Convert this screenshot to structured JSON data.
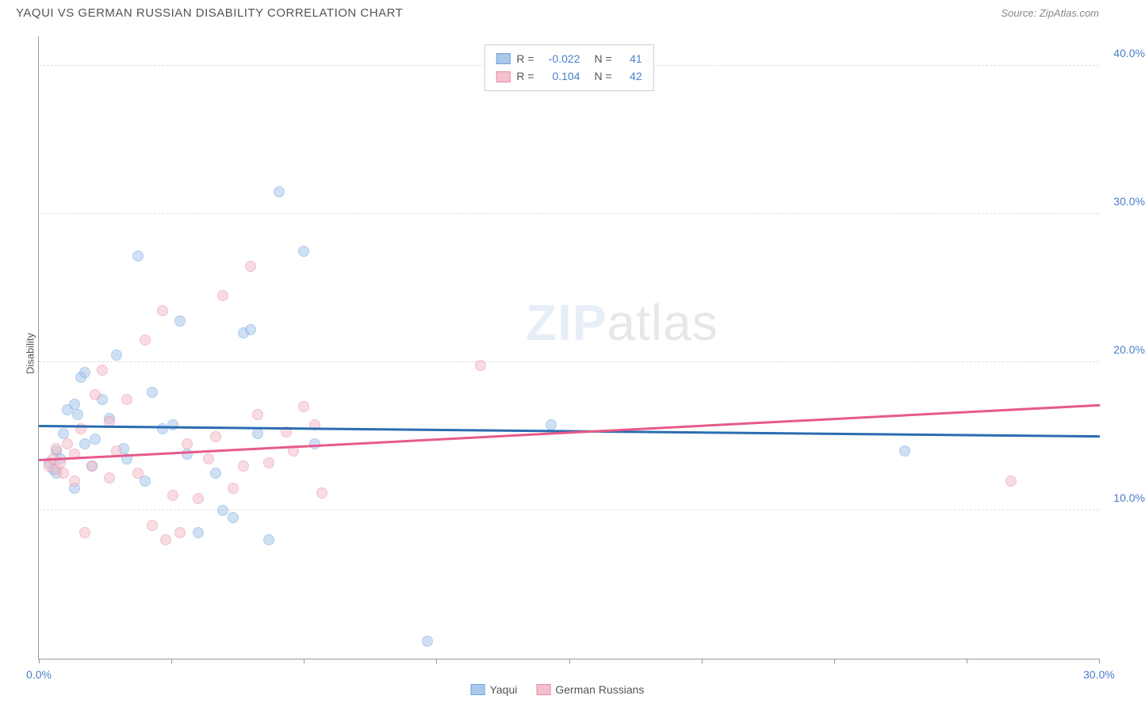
{
  "title": "YAQUI VS GERMAN RUSSIAN DISABILITY CORRELATION CHART",
  "source_label": "Source: ZipAtlas.com",
  "ylabel": "Disability",
  "watermark_bold": "ZIP",
  "watermark_thin": "atlas",
  "chart": {
    "type": "scatter",
    "xlim": [
      0,
      30
    ],
    "ylim": [
      0,
      42
    ],
    "xtick_positions": [
      0,
      3.75,
      7.5,
      11.25,
      15,
      18.75,
      22.5,
      26.25,
      30
    ],
    "xtick_labels": {
      "0": "0.0%",
      "30": "30.0%"
    },
    "ytick_positions": [
      10,
      20,
      30,
      40
    ],
    "ytick_labels": [
      "10.0%",
      "20.0%",
      "30.0%",
      "40.0%"
    ],
    "grid_color": "#dddddd",
    "background_color": "#ffffff",
    "axis_color": "#999999",
    "tick_label_color": "#4a7ec9",
    "marker_radius": 7,
    "marker_opacity": 0.55,
    "series": [
      {
        "name": "Yaqui",
        "color_fill": "#a8c8ec",
        "color_stroke": "#6fa3dd",
        "R": "-0.022",
        "N": "41",
        "trend": {
          "y_at_xmin": 15.8,
          "y_at_xmax": 15.1,
          "color": "#2b6cb0",
          "width": 2.5
        },
        "points": [
          [
            0.3,
            13.2
          ],
          [
            0.4,
            12.8
          ],
          [
            0.5,
            14.0
          ],
          [
            0.5,
            12.5
          ],
          [
            0.6,
            13.5
          ],
          [
            0.7,
            15.2
          ],
          [
            0.8,
            16.8
          ],
          [
            1.0,
            17.2
          ],
          [
            1.1,
            16.5
          ],
          [
            1.2,
            19.0
          ],
          [
            1.3,
            19.3
          ],
          [
            1.3,
            14.5
          ],
          [
            1.5,
            13.0
          ],
          [
            1.6,
            14.8
          ],
          [
            1.8,
            17.5
          ],
          [
            2.0,
            16.2
          ],
          [
            2.2,
            20.5
          ],
          [
            2.4,
            14.2
          ],
          [
            2.5,
            13.5
          ],
          [
            2.8,
            27.2
          ],
          [
            3.0,
            12.0
          ],
          [
            3.2,
            18.0
          ],
          [
            3.5,
            15.5
          ],
          [
            3.8,
            15.8
          ],
          [
            4.0,
            22.8
          ],
          [
            4.2,
            13.8
          ],
          [
            4.5,
            8.5
          ],
          [
            5.0,
            12.5
          ],
          [
            5.2,
            10.0
          ],
          [
            5.5,
            9.5
          ],
          [
            5.8,
            22.0
          ],
          [
            6.0,
            22.2
          ],
          [
            6.2,
            15.2
          ],
          [
            6.5,
            8.0
          ],
          [
            6.8,
            31.5
          ],
          [
            7.5,
            27.5
          ],
          [
            7.8,
            14.5
          ],
          [
            11.0,
            1.2
          ],
          [
            14.5,
            15.8
          ],
          [
            24.5,
            14.0
          ],
          [
            1.0,
            11.5
          ]
        ]
      },
      {
        "name": "German Russians",
        "color_fill": "#f4c0cc",
        "color_stroke": "#e88ba5",
        "R": "0.104",
        "N": "42",
        "trend": {
          "y_at_xmin": 13.5,
          "y_at_xmax": 17.2,
          "color": "#e75a8a",
          "width": 2.5
        },
        "points": [
          [
            0.3,
            13.0
          ],
          [
            0.4,
            13.5
          ],
          [
            0.5,
            12.8
          ],
          [
            0.5,
            14.2
          ],
          [
            0.6,
            13.2
          ],
          [
            0.7,
            12.5
          ],
          [
            0.8,
            14.5
          ],
          [
            1.0,
            13.8
          ],
          [
            1.0,
            12.0
          ],
          [
            1.2,
            15.5
          ],
          [
            1.3,
            8.5
          ],
          [
            1.5,
            13.0
          ],
          [
            1.6,
            17.8
          ],
          [
            1.8,
            19.5
          ],
          [
            2.0,
            12.2
          ],
          [
            2.2,
            14.0
          ],
          [
            2.5,
            17.5
          ],
          [
            2.8,
            12.5
          ],
          [
            3.0,
            21.5
          ],
          [
            3.2,
            9.0
          ],
          [
            3.5,
            23.5
          ],
          [
            3.6,
            8.0
          ],
          [
            3.8,
            11.0
          ],
          [
            4.0,
            8.5
          ],
          [
            4.2,
            14.5
          ],
          [
            4.5,
            10.8
          ],
          [
            4.8,
            13.5
          ],
          [
            5.0,
            15.0
          ],
          [
            5.2,
            24.5
          ],
          [
            5.5,
            11.5
          ],
          [
            5.8,
            13.0
          ],
          [
            6.0,
            26.5
          ],
          [
            6.2,
            16.5
          ],
          [
            6.5,
            13.2
          ],
          [
            7.0,
            15.3
          ],
          [
            7.2,
            14.0
          ],
          [
            7.5,
            17.0
          ],
          [
            7.8,
            15.8
          ],
          [
            8.0,
            11.2
          ],
          [
            12.5,
            19.8
          ],
          [
            27.5,
            12.0
          ],
          [
            2.0,
            16.0
          ]
        ]
      }
    ]
  },
  "legend_top": {
    "r_label": "R =",
    "n_label": "N ="
  },
  "legend_bottom": [
    {
      "swatch_fill": "#a8c8ec",
      "swatch_stroke": "#6fa3dd",
      "label": "Yaqui"
    },
    {
      "swatch_fill": "#f4c0cc",
      "swatch_stroke": "#e88ba5",
      "label": "German Russians"
    }
  ]
}
